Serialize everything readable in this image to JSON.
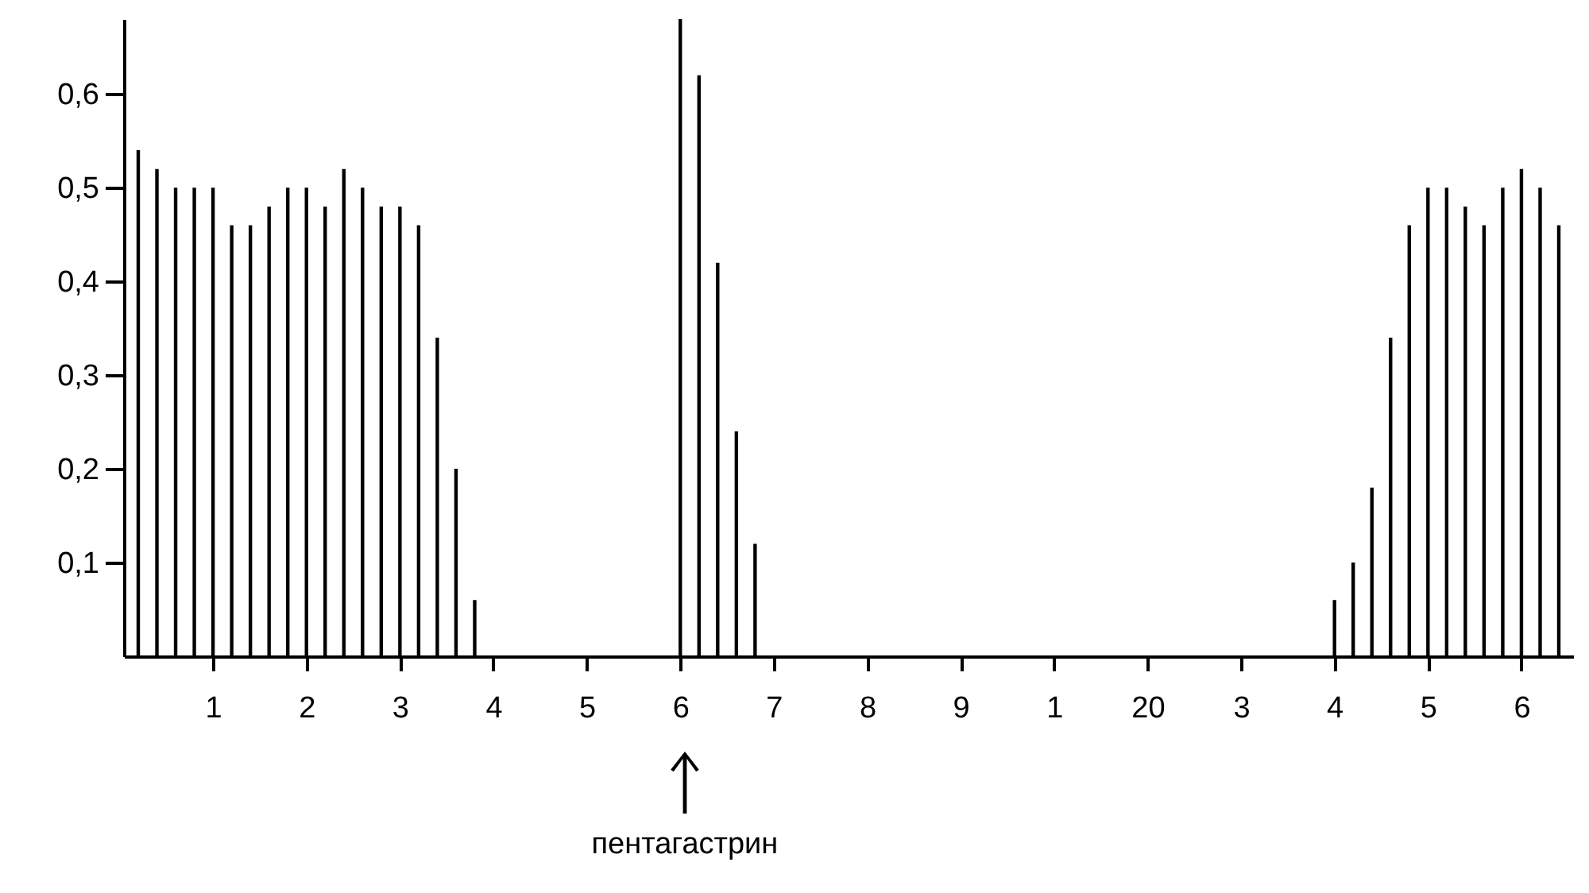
{
  "chart_data": {
    "type": "bar",
    "color": "#000000",
    "categories": [
      null,
      null,
      null,
      null,
      "1",
      null,
      null,
      null,
      null,
      "2",
      null,
      null,
      null,
      null,
      "3",
      null,
      null,
      null,
      null,
      "4",
      null,
      null,
      null,
      null,
      "5",
      null,
      null,
      null,
      null,
      "6",
      null,
      null,
      null,
      null,
      "7",
      null,
      null,
      null,
      null,
      "8",
      null,
      null,
      null,
      null,
      "9",
      null,
      null,
      null,
      null,
      "1",
      null,
      null,
      null,
      null,
      "20",
      null,
      null,
      null,
      null,
      "3",
      null,
      null,
      null,
      null,
      "4",
      null,
      null,
      null,
      null,
      "5",
      null,
      null,
      null,
      null,
      "6",
      null,
      null
    ],
    "values": [
      0.54,
      0.52,
      0.5,
      0.5,
      0.5,
      0.46,
      0.46,
      0.48,
      0.5,
      0.5,
      0.48,
      0.52,
      0.5,
      0.48,
      0.48,
      0.46,
      0.34,
      0.2,
      0.06,
      null,
      null,
      null,
      null,
      null,
      null,
      null,
      null,
      null,
      null,
      0.68,
      0.62,
      0.42,
      0.24,
      0.12,
      null,
      null,
      null,
      null,
      null,
      null,
      null,
      null,
      null,
      null,
      null,
      null,
      null,
      null,
      null,
      null,
      null,
      null,
      null,
      null,
      null,
      null,
      null,
      null,
      null,
      null,
      null,
      null,
      null,
      null,
      0.06,
      0.1,
      0.18,
      0.34,
      0.46,
      0.5,
      0.5,
      0.48,
      0.46,
      0.5,
      0.52,
      0.5,
      0.46
    ],
    "ylim": [
      0,
      0.68
    ],
    "yticks": [
      {
        "value": 0.1,
        "label": "0,1"
      },
      {
        "value": 0.2,
        "label": "0,2"
      },
      {
        "value": 0.3,
        "label": "0,3"
      },
      {
        "value": 0.4,
        "label": "0,4"
      },
      {
        "value": 0.5,
        "label": "0,5"
      },
      {
        "value": 0.6,
        "label": "0,6"
      }
    ],
    "annotations": [
      "пентагастрин"
    ]
  }
}
